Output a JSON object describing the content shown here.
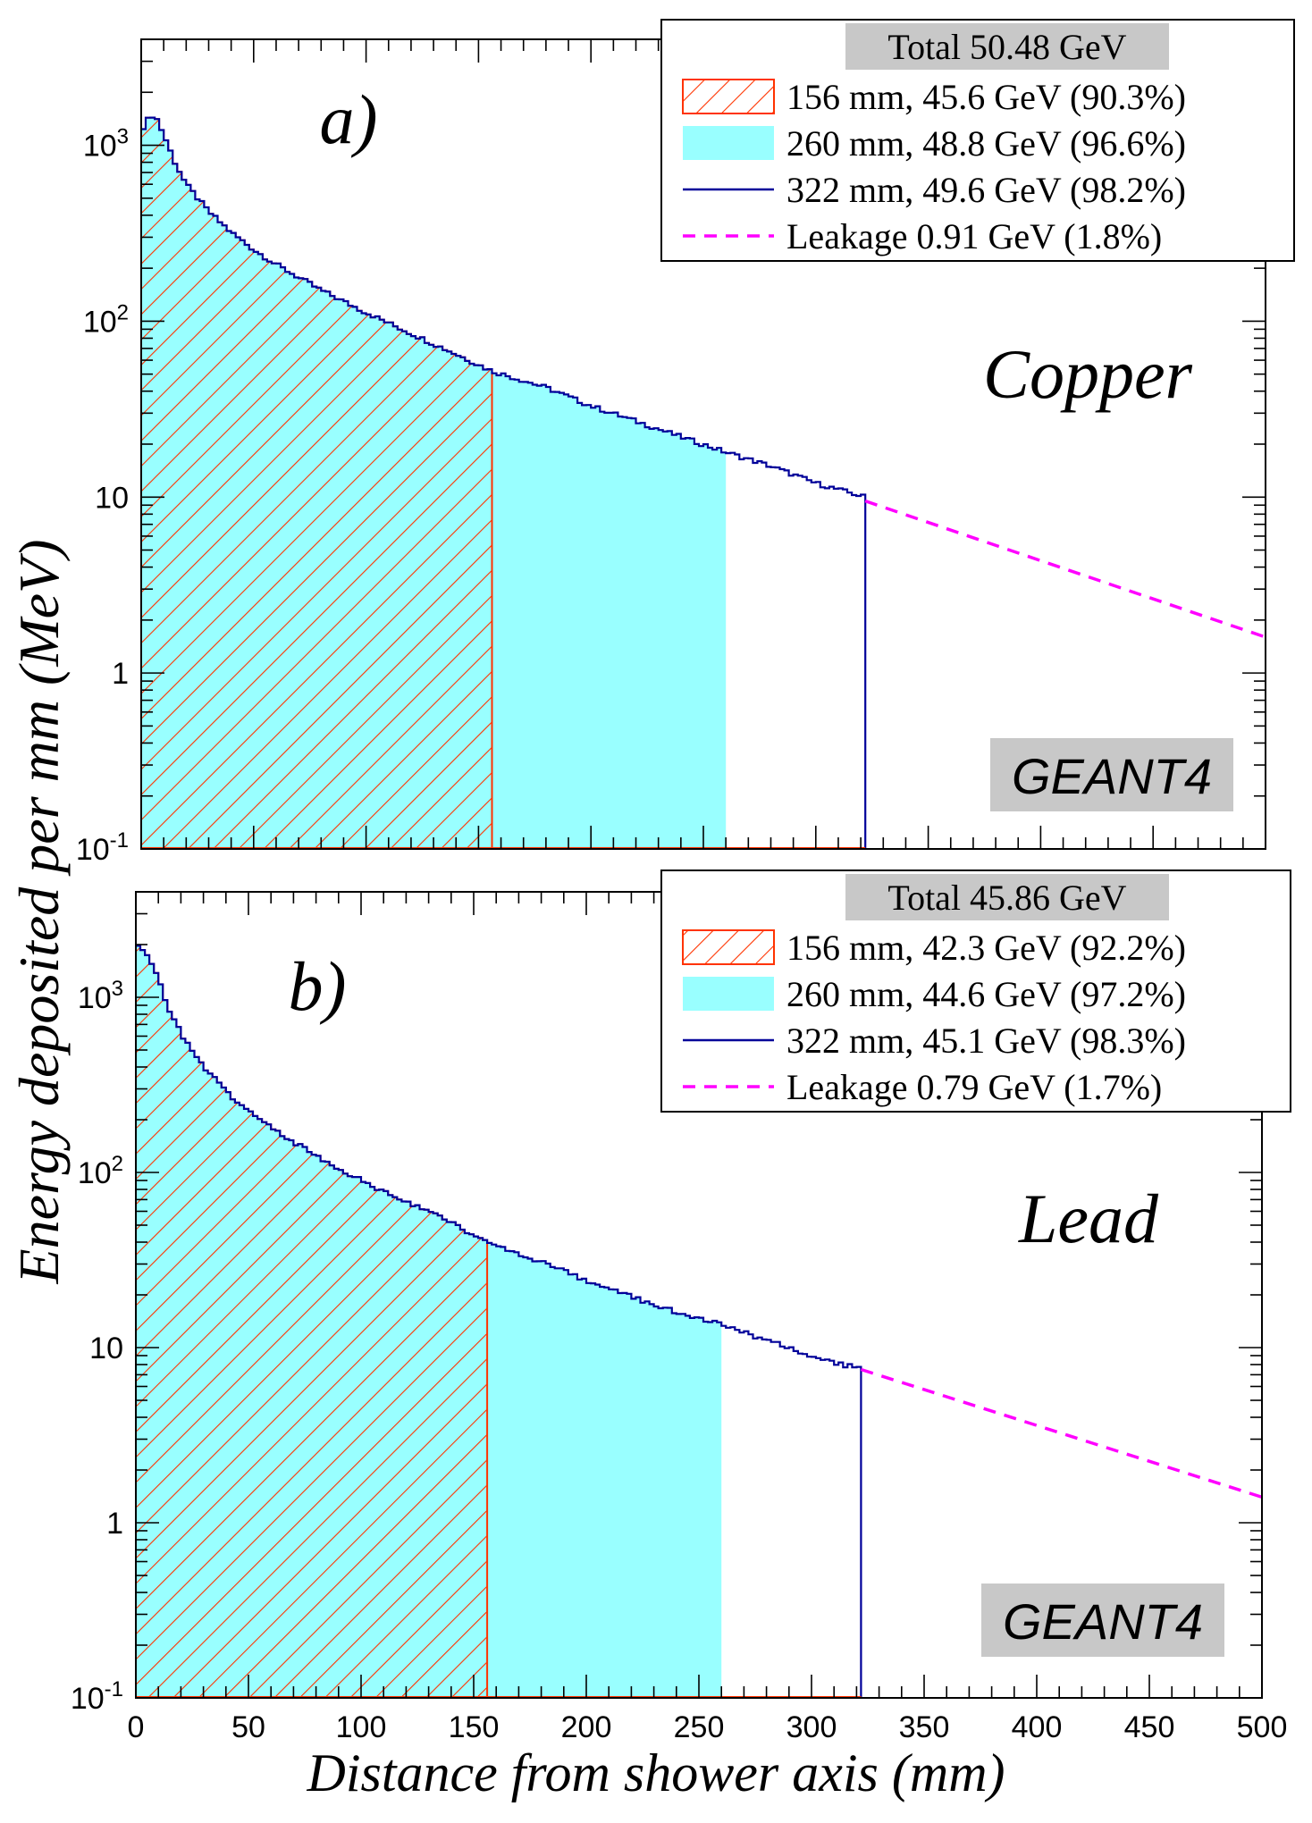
{
  "figure": {
    "ylabel": "Energy deposited per mm (MeV)",
    "xlabel": "Distance from shower axis (mm)"
  },
  "colors": {
    "hatched": "#ff3300",
    "filled": "#99ffff",
    "line": "#000099",
    "leakage": "#ff00ff",
    "labelbox": "#c8c8c8"
  },
  "chart_data": [
    {
      "type": "area",
      "panel_label": "a)",
      "material": "Copper",
      "watermark": "GEANT4",
      "yscale": "log",
      "xlim": [
        0,
        500
      ],
      "ylim": [
        0.1,
        4000
      ],
      "x_ticks": [
        "0",
        "50",
        "100",
        "150",
        "200",
        "250",
        "300",
        "350",
        "400",
        "450",
        "500"
      ],
      "y_ticks": [
        {
          "value": 0.1,
          "base": "10",
          "exp": "-1"
        },
        {
          "value": 1,
          "base": "1",
          "exp": ""
        },
        {
          "value": 10,
          "base": "10",
          "exp": ""
        },
        {
          "value": 100,
          "base": "10",
          "exp": "2"
        },
        {
          "value": 1000,
          "base": "10",
          "exp": "3"
        }
      ],
      "legend": {
        "title": "Total  50.48 GeV",
        "entries": [
          {
            "style": "hatched",
            "label": "156 mm, 45.6 GeV (90.3%)"
          },
          {
            "style": "filled",
            "label": "260 mm, 48.8 GeV (96.6%)"
          },
          {
            "style": "line",
            "label": "322 mm, 49.6 GeV (98.2%)"
          },
          {
            "style": "dashed",
            "label": "Leakage  0.91 GeV (1.8%)"
          }
        ]
      },
      "profile": {
        "x": [
          0,
          2,
          4,
          6,
          10,
          15,
          20,
          30,
          40,
          50,
          60,
          80,
          100,
          120,
          140,
          156,
          180,
          200,
          220,
          240,
          260,
          280,
          300,
          322
        ],
        "y": [
          1200,
          1350,
          1450,
          1500,
          1150,
          800,
          600,
          420,
          320,
          255,
          210,
          150,
          112,
          85,
          65,
          52,
          42,
          33,
          27,
          22,
          18,
          15,
          12,
          10
        ]
      },
      "cuts": {
        "hatched_end": 156,
        "filled_end": 260,
        "line_end": 322
      },
      "leakage": {
        "x": [
          322,
          500
        ],
        "y": [
          9.5,
          1.6
        ]
      }
    },
    {
      "type": "area",
      "panel_label": "b)",
      "material": "Lead",
      "watermark": "GEANT4",
      "yscale": "log",
      "xlim": [
        0,
        500
      ],
      "ylim": [
        0.1,
        4000
      ],
      "x_ticks": [
        "0",
        "50",
        "100",
        "150",
        "200",
        "250",
        "300",
        "350",
        "400",
        "450",
        "500"
      ],
      "y_ticks": [
        {
          "value": 0.1,
          "base": "10",
          "exp": "-1"
        },
        {
          "value": 1,
          "base": "1",
          "exp": ""
        },
        {
          "value": 10,
          "base": "10",
          "exp": ""
        },
        {
          "value": 100,
          "base": "10",
          "exp": "2"
        },
        {
          "value": 1000,
          "base": "10",
          "exp": "3"
        }
      ],
      "legend": {
        "title": "Total 45.86 GeV",
        "entries": [
          {
            "style": "hatched",
            "label": "156 mm, 42.3 GeV (92.2%)"
          },
          {
            "style": "filled",
            "label": "260 mm, 44.6 GeV (97.2%)"
          },
          {
            "style": "line",
            "label": "322 mm, 45.1 GeV (98.3%)"
          },
          {
            "style": "dashed",
            "label": "Leakage 0.79 GeV (1.7%)"
          }
        ]
      },
      "profile": {
        "x": [
          0,
          2,
          4,
          6,
          10,
          15,
          20,
          30,
          40,
          50,
          60,
          80,
          100,
          120,
          140,
          156,
          180,
          200,
          220,
          240,
          260,
          280,
          300,
          322
        ],
        "y": [
          1900,
          1950,
          1850,
          1700,
          1250,
          850,
          620,
          400,
          290,
          225,
          180,
          125,
          90,
          68,
          52,
          40,
          31,
          24,
          19.5,
          16,
          13.5,
          11,
          9,
          7.5
        ]
      },
      "cuts": {
        "hatched_end": 156,
        "filled_end": 260,
        "line_end": 322
      },
      "leakage": {
        "x": [
          322,
          500
        ],
        "y": [
          7.5,
          1.4
        ]
      }
    }
  ]
}
